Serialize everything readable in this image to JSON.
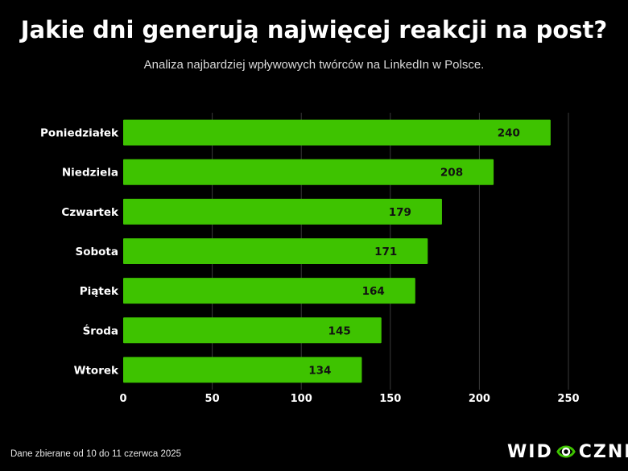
{
  "header": {
    "title": "Jakie dni generują najwięcej reakcji na post?",
    "subtitle": "Analiza najbardziej wpływowych twórców na LinkedIn w Polsce."
  },
  "chart_data": {
    "type": "bar",
    "orientation": "horizontal",
    "title": "Jakie dni generują najwięcej reakcji na post?",
    "subtitle": "Analiza najbardziej wpływowych twórców na LinkedIn w Polsce.",
    "categories": [
      "Poniedziałek",
      "Niedziela",
      "Czwartek",
      "Sobota",
      "Piątek",
      "Środa",
      "Wtorek"
    ],
    "values": [
      240,
      208,
      179,
      171,
      164,
      145,
      134
    ],
    "xlabel": "",
    "ylabel": "",
    "xlim": [
      0,
      250
    ],
    "xticks": [
      0,
      50,
      100,
      150,
      200,
      250
    ],
    "grid": "vertical",
    "bar_color": "#3ec300",
    "data_labels": true
  },
  "footer": {
    "note": "Dane zbierane od 10 do 11 czerwca 2025",
    "logo_left": "WID",
    "logo_right": "CZNI",
    "logo_icon": "eye-swirl-icon"
  },
  "colors": {
    "background": "#000000",
    "bar": "#3ec300",
    "grid": "#3a3a3a",
    "accent": "#3ec300"
  }
}
